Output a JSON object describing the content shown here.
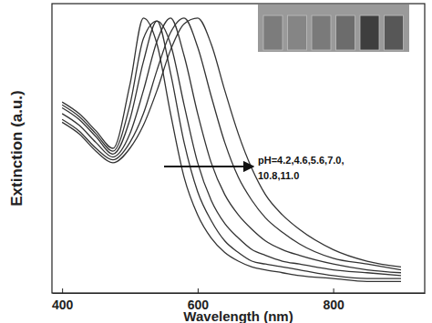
{
  "chart_data": {
    "type": "line",
    "x_label": "Wavelength (nm)",
    "y_label": "Extinction (a.u.)",
    "x": [
      400,
      425,
      450,
      475,
      500,
      520,
      540,
      560,
      580,
      600,
      620,
      640,
      660,
      680,
      700,
      725,
      750,
      800,
      850,
      900
    ],
    "series": [
      {
        "color": "#333333",
        "values": [
          0.66,
          0.62,
          0.56,
          0.5,
          0.72,
          0.95,
          0.86,
          0.62,
          0.4,
          0.27,
          0.19,
          0.14,
          0.11,
          0.09,
          0.08,
          0.07,
          0.06,
          0.05,
          0.04,
          0.04
        ]
      },
      {
        "color": "#333333",
        "values": [
          0.65,
          0.61,
          0.55,
          0.49,
          0.65,
          0.88,
          0.94,
          0.76,
          0.52,
          0.35,
          0.25,
          0.18,
          0.14,
          0.11,
          0.1,
          0.09,
          0.08,
          0.06,
          0.05,
          0.05
        ]
      },
      {
        "color": "#333333",
        "values": [
          0.64,
          0.6,
          0.54,
          0.48,
          0.6,
          0.8,
          0.94,
          0.86,
          0.65,
          0.45,
          0.32,
          0.24,
          0.19,
          0.15,
          0.13,
          0.11,
          0.1,
          0.08,
          0.07,
          0.06
        ]
      },
      {
        "color": "#333333",
        "values": [
          0.62,
          0.58,
          0.52,
          0.47,
          0.55,
          0.7,
          0.87,
          0.95,
          0.82,
          0.62,
          0.45,
          0.34,
          0.27,
          0.22,
          0.18,
          0.15,
          0.13,
          0.1,
          0.08,
          0.07
        ]
      },
      {
        "color": "#333333",
        "values": [
          0.6,
          0.56,
          0.5,
          0.46,
          0.52,
          0.62,
          0.77,
          0.9,
          0.95,
          0.85,
          0.68,
          0.52,
          0.4,
          0.32,
          0.26,
          0.21,
          0.17,
          0.12,
          0.1,
          0.08
        ]
      },
      {
        "color": "#333333",
        "values": [
          0.59,
          0.55,
          0.49,
          0.45,
          0.5,
          0.58,
          0.7,
          0.84,
          0.93,
          0.95,
          0.86,
          0.7,
          0.55,
          0.43,
          0.34,
          0.27,
          0.22,
          0.15,
          0.11,
          0.09
        ]
      }
    ],
    "xlim": [
      385,
      935
    ],
    "xticks": [
      400,
      600,
      800
    ],
    "ylim": [
      0,
      1
    ],
    "tick_labels": "x",
    "annotations": [
      {
        "text": "pH=4.2,4.6,5.6,7.0,\n10.8,11.0"
      }
    ]
  }
}
